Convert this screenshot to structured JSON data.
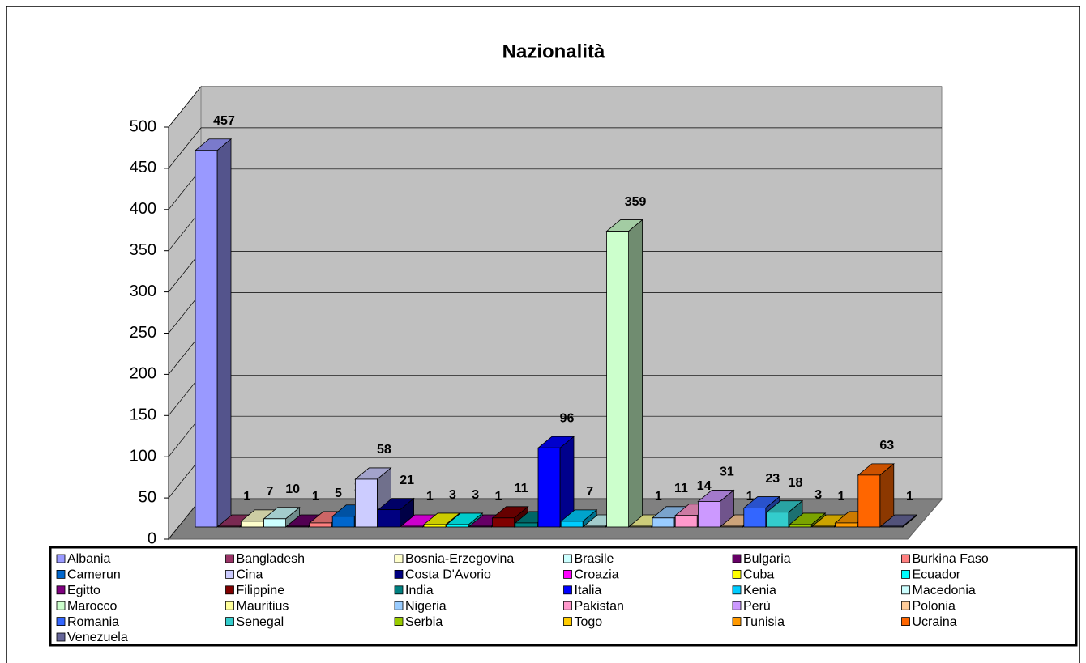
{
  "chart_data": {
    "type": "bar3d",
    "title": "Nazionalità",
    "categories": [
      "Albania",
      "Bangladesh",
      "Bosnia-Erzegovina",
      "Brasile",
      "Bulgaria",
      "Burkina Faso",
      "Camerun",
      "Cina",
      "Costa D'Avorio",
      "Croazia",
      "Cuba",
      "Ecuador",
      "Egitto",
      "Filippine",
      "India",
      "Italia",
      "Kenia",
      "Macedonia",
      "Marocco",
      "Mauritius",
      "Nigeria",
      "Pakistan",
      "Perù",
      "Polonia",
      "Romania",
      "Senegal",
      "Serbia",
      "Togo",
      "Tunisia",
      "Ucraina",
      "Venezuela"
    ],
    "values": [
      457,
      1,
      7,
      10,
      1,
      5,
      13,
      58,
      21,
      1,
      3,
      3,
      1,
      11,
      5,
      96,
      7,
      1,
      359,
      1,
      11,
      14,
      31,
      1,
      23,
      18,
      3,
      1,
      5,
      63,
      1
    ],
    "colors": [
      "#9999ff",
      "#993366",
      "#ffffcc",
      "#ccffff",
      "#660066",
      "#ff8080",
      "#0066cc",
      "#ccccff",
      "#000080",
      "#ff00ff",
      "#ffff00",
      "#00ffff",
      "#800080",
      "#800000",
      "#008080",
      "#0000ff",
      "#00ccff",
      "#ccffff",
      "#ccffcc",
      "#ffff99",
      "#99ccff",
      "#ff99cc",
      "#cc99ff",
      "#ffcc99",
      "#3366ff",
      "#33cccc",
      "#99cc00",
      "#ffcc00",
      "#ff9900",
      "#ff6600",
      "#666699"
    ],
    "ylim": [
      0,
      500
    ],
    "yticks": [
      0,
      50,
      100,
      150,
      200,
      250,
      300,
      350,
      400,
      450,
      500
    ],
    "grid": true,
    "legend": "bottom"
  }
}
